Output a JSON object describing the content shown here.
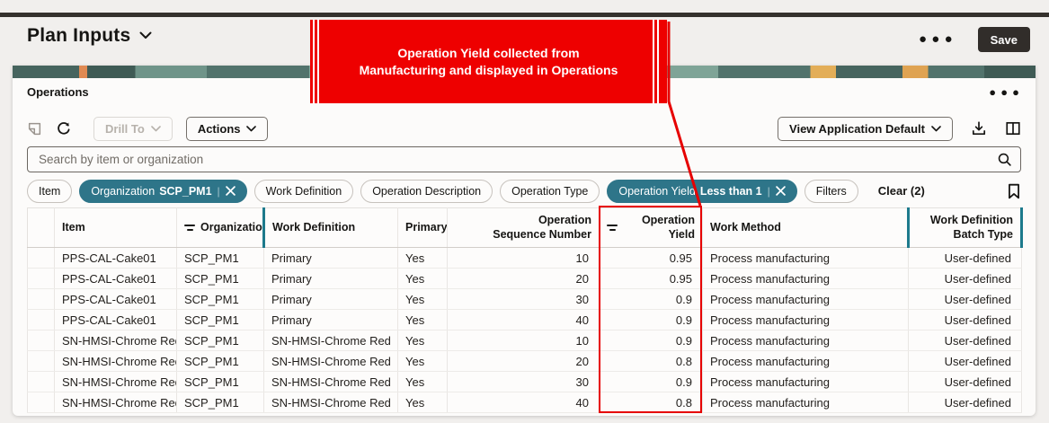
{
  "page": {
    "title": "Plan Inputs",
    "save_label": "Save"
  },
  "panel": {
    "title": "Operations"
  },
  "toolbar": {
    "drill_to_label": "Drill To",
    "actions_label": "Actions",
    "view_label": "View Application Default"
  },
  "search": {
    "placeholder": "Search by item or organization"
  },
  "filters": {
    "chips": [
      {
        "label": "Item"
      },
      {
        "label": "Organization",
        "value": "SCP_PM1",
        "active": true,
        "removable": true
      },
      {
        "label": "Work Definition"
      },
      {
        "label": "Operation Description"
      },
      {
        "label": "Operation Type"
      },
      {
        "label": "Operation Yield",
        "value": "Less than 1",
        "active": true,
        "removable": true
      },
      {
        "label": "Filters"
      }
    ],
    "clear_label": "Clear (2)"
  },
  "table": {
    "columns": [
      {
        "key": "selector",
        "label": ""
      },
      {
        "key": "item",
        "label": "Item"
      },
      {
        "key": "organization",
        "label": "Organization",
        "filtered": true,
        "tealbar": true
      },
      {
        "key": "work-definition",
        "label": "Work Definition"
      },
      {
        "key": "primary",
        "label": "Primary"
      },
      {
        "key": "operation-sequence-number",
        "label": "Operation\nSequence Number",
        "align": "right"
      },
      {
        "key": "operation-yield",
        "label": "Operation Yield",
        "filtered": true,
        "align": "right"
      },
      {
        "key": "work-method",
        "label": "Work Method",
        "tealbar": true
      },
      {
        "key": "work-definition-batch-type",
        "label": "Work Definition\nBatch Type",
        "align": "right",
        "tealbar": true
      }
    ],
    "rows": [
      [
        "PPS-CAL-Cake01",
        "SCP_PM1",
        "Primary",
        "Yes",
        "10",
        "0.95",
        "Process manufacturing",
        "User-defined"
      ],
      [
        "PPS-CAL-Cake01",
        "SCP_PM1",
        "Primary",
        "Yes",
        "20",
        "0.95",
        "Process manufacturing",
        "User-defined"
      ],
      [
        "PPS-CAL-Cake01",
        "SCP_PM1",
        "Primary",
        "Yes",
        "30",
        "0.9",
        "Process manufacturing",
        "User-defined"
      ],
      [
        "PPS-CAL-Cake01",
        "SCP_PM1",
        "Primary",
        "Yes",
        "40",
        "0.9",
        "Process manufacturing",
        "User-defined"
      ],
      [
        "SN-HMSI-Chrome Red",
        "SCP_PM1",
        "SN-HMSI-Chrome Red",
        "Yes",
        "10",
        "0.9",
        "Process manufacturing",
        "User-defined"
      ],
      [
        "SN-HMSI-Chrome Red",
        "SCP_PM1",
        "SN-HMSI-Chrome Red",
        "Yes",
        "20",
        "0.8",
        "Process manufacturing",
        "User-defined"
      ],
      [
        "SN-HMSI-Chrome Red",
        "SCP_PM1",
        "SN-HMSI-Chrome Red",
        "Yes",
        "30",
        "0.9",
        "Process manufacturing",
        "User-defined"
      ],
      [
        "SN-HMSI-Chrome Red",
        "SCP_PM1",
        "SN-HMSI-Chrome Red",
        "Yes",
        "40",
        "0.8",
        "Process manufacturing",
        "User-defined"
      ]
    ]
  },
  "annotation": {
    "callout": "Operation Yield collected from\nManufacturing and displayed in Operations",
    "color": "#ee0000"
  },
  "colors": {
    "accent_teal": "#1d7a8c",
    "chip_teal": "#2e7589",
    "dark": "#312d2a",
    "background": "#f1efed"
  }
}
